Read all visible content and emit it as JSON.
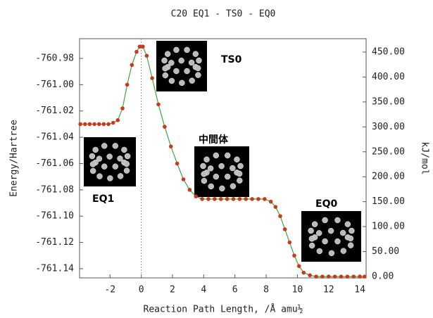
{
  "chart_data": {
    "type": "line",
    "title": "C20    EQ1 - TS0 - EQ0",
    "x_label": "Reaction Path Length, /Å amu½",
    "y_label": "Energy/Hartree",
    "y2_label": "kJ/mol",
    "xlim": [
      -3.95,
      14.4
    ],
    "xticks": [
      -2,
      0,
      2,
      4,
      6,
      8,
      10,
      12,
      14
    ],
    "ylim": [
      -761.147,
      -760.965
    ],
    "yticks": [
      -760.98,
      {
        "value": -761,
        "label": "-761.00"
      },
      -761.02,
      -761.04,
      -761.06,
      -761.08,
      {
        "value": -761.1,
        "label": "-761.10"
      },
      -761.12,
      -761.14
    ],
    "y2lim": [
      -2.8,
      476.8
    ],
    "y2ticks": [
      {
        "value": 450,
        "label": "450.00"
      },
      {
        "value": 400,
        "label": "400.00"
      },
      {
        "value": 350,
        "label": "350.00"
      },
      {
        "value": 300,
        "label": "300.00"
      },
      {
        "value": 250,
        "label": "250.00"
      },
      {
        "value": 200,
        "label": "200.00"
      },
      {
        "value": 150,
        "label": "150.00"
      },
      {
        "value": 100,
        "label": "100.00"
      },
      {
        "value": 50,
        "label": "50.00"
      },
      {
        "value": 0,
        "label": "0.00"
      }
    ],
    "vline": 0,
    "line_color": "#3aa83a",
    "point_color": "#c8391e",
    "x": [
      -3.9,
      -3.6,
      -3.3,
      -3.0,
      -2.7,
      -2.4,
      -2.1,
      -1.8,
      -1.5,
      -1.2,
      -0.9,
      -0.6,
      -0.3,
      -0.1,
      0.1,
      0.35,
      0.7,
      1.1,
      1.5,
      1.9,
      2.3,
      2.7,
      3.1,
      3.5,
      3.9,
      4.3,
      4.7,
      5.1,
      5.5,
      5.9,
      6.3,
      6.7,
      7.1,
      7.5,
      7.9,
      8.3,
      8.6,
      8.9,
      9.2,
      9.5,
      9.8,
      10.1,
      10.4,
      10.8,
      11.2,
      11.6,
      12.0,
      12.4,
      12.8,
      13.2,
      13.6,
      14.0,
      14.3
    ],
    "y": [
      -761.03,
      -761.03,
      -761.03,
      -761.03,
      -761.03,
      -761.03,
      -761.03,
      -761.029,
      -761.027,
      -761.018,
      -761.0,
      -760.985,
      -760.975,
      -760.971,
      -760.971,
      -760.978,
      -760.995,
      -761.015,
      -761.032,
      -761.047,
      -761.06,
      -761.072,
      -761.08,
      -761.085,
      -761.087,
      -761.087,
      -761.087,
      -761.087,
      -761.087,
      -761.087,
      -761.087,
      -761.087,
      -761.087,
      -761.087,
      -761.087,
      -761.089,
      -761.093,
      -761.1,
      -761.11,
      -761.12,
      -761.13,
      -761.138,
      -761.143,
      -761.145,
      -761.146,
      -761.146,
      -761.146,
      -761.146,
      -761.146,
      -761.146,
      -761.146,
      -761.146,
      -761.146
    ],
    "annotations": [
      "TS0",
      "中間体",
      "EQ1",
      "EQ0"
    ]
  }
}
